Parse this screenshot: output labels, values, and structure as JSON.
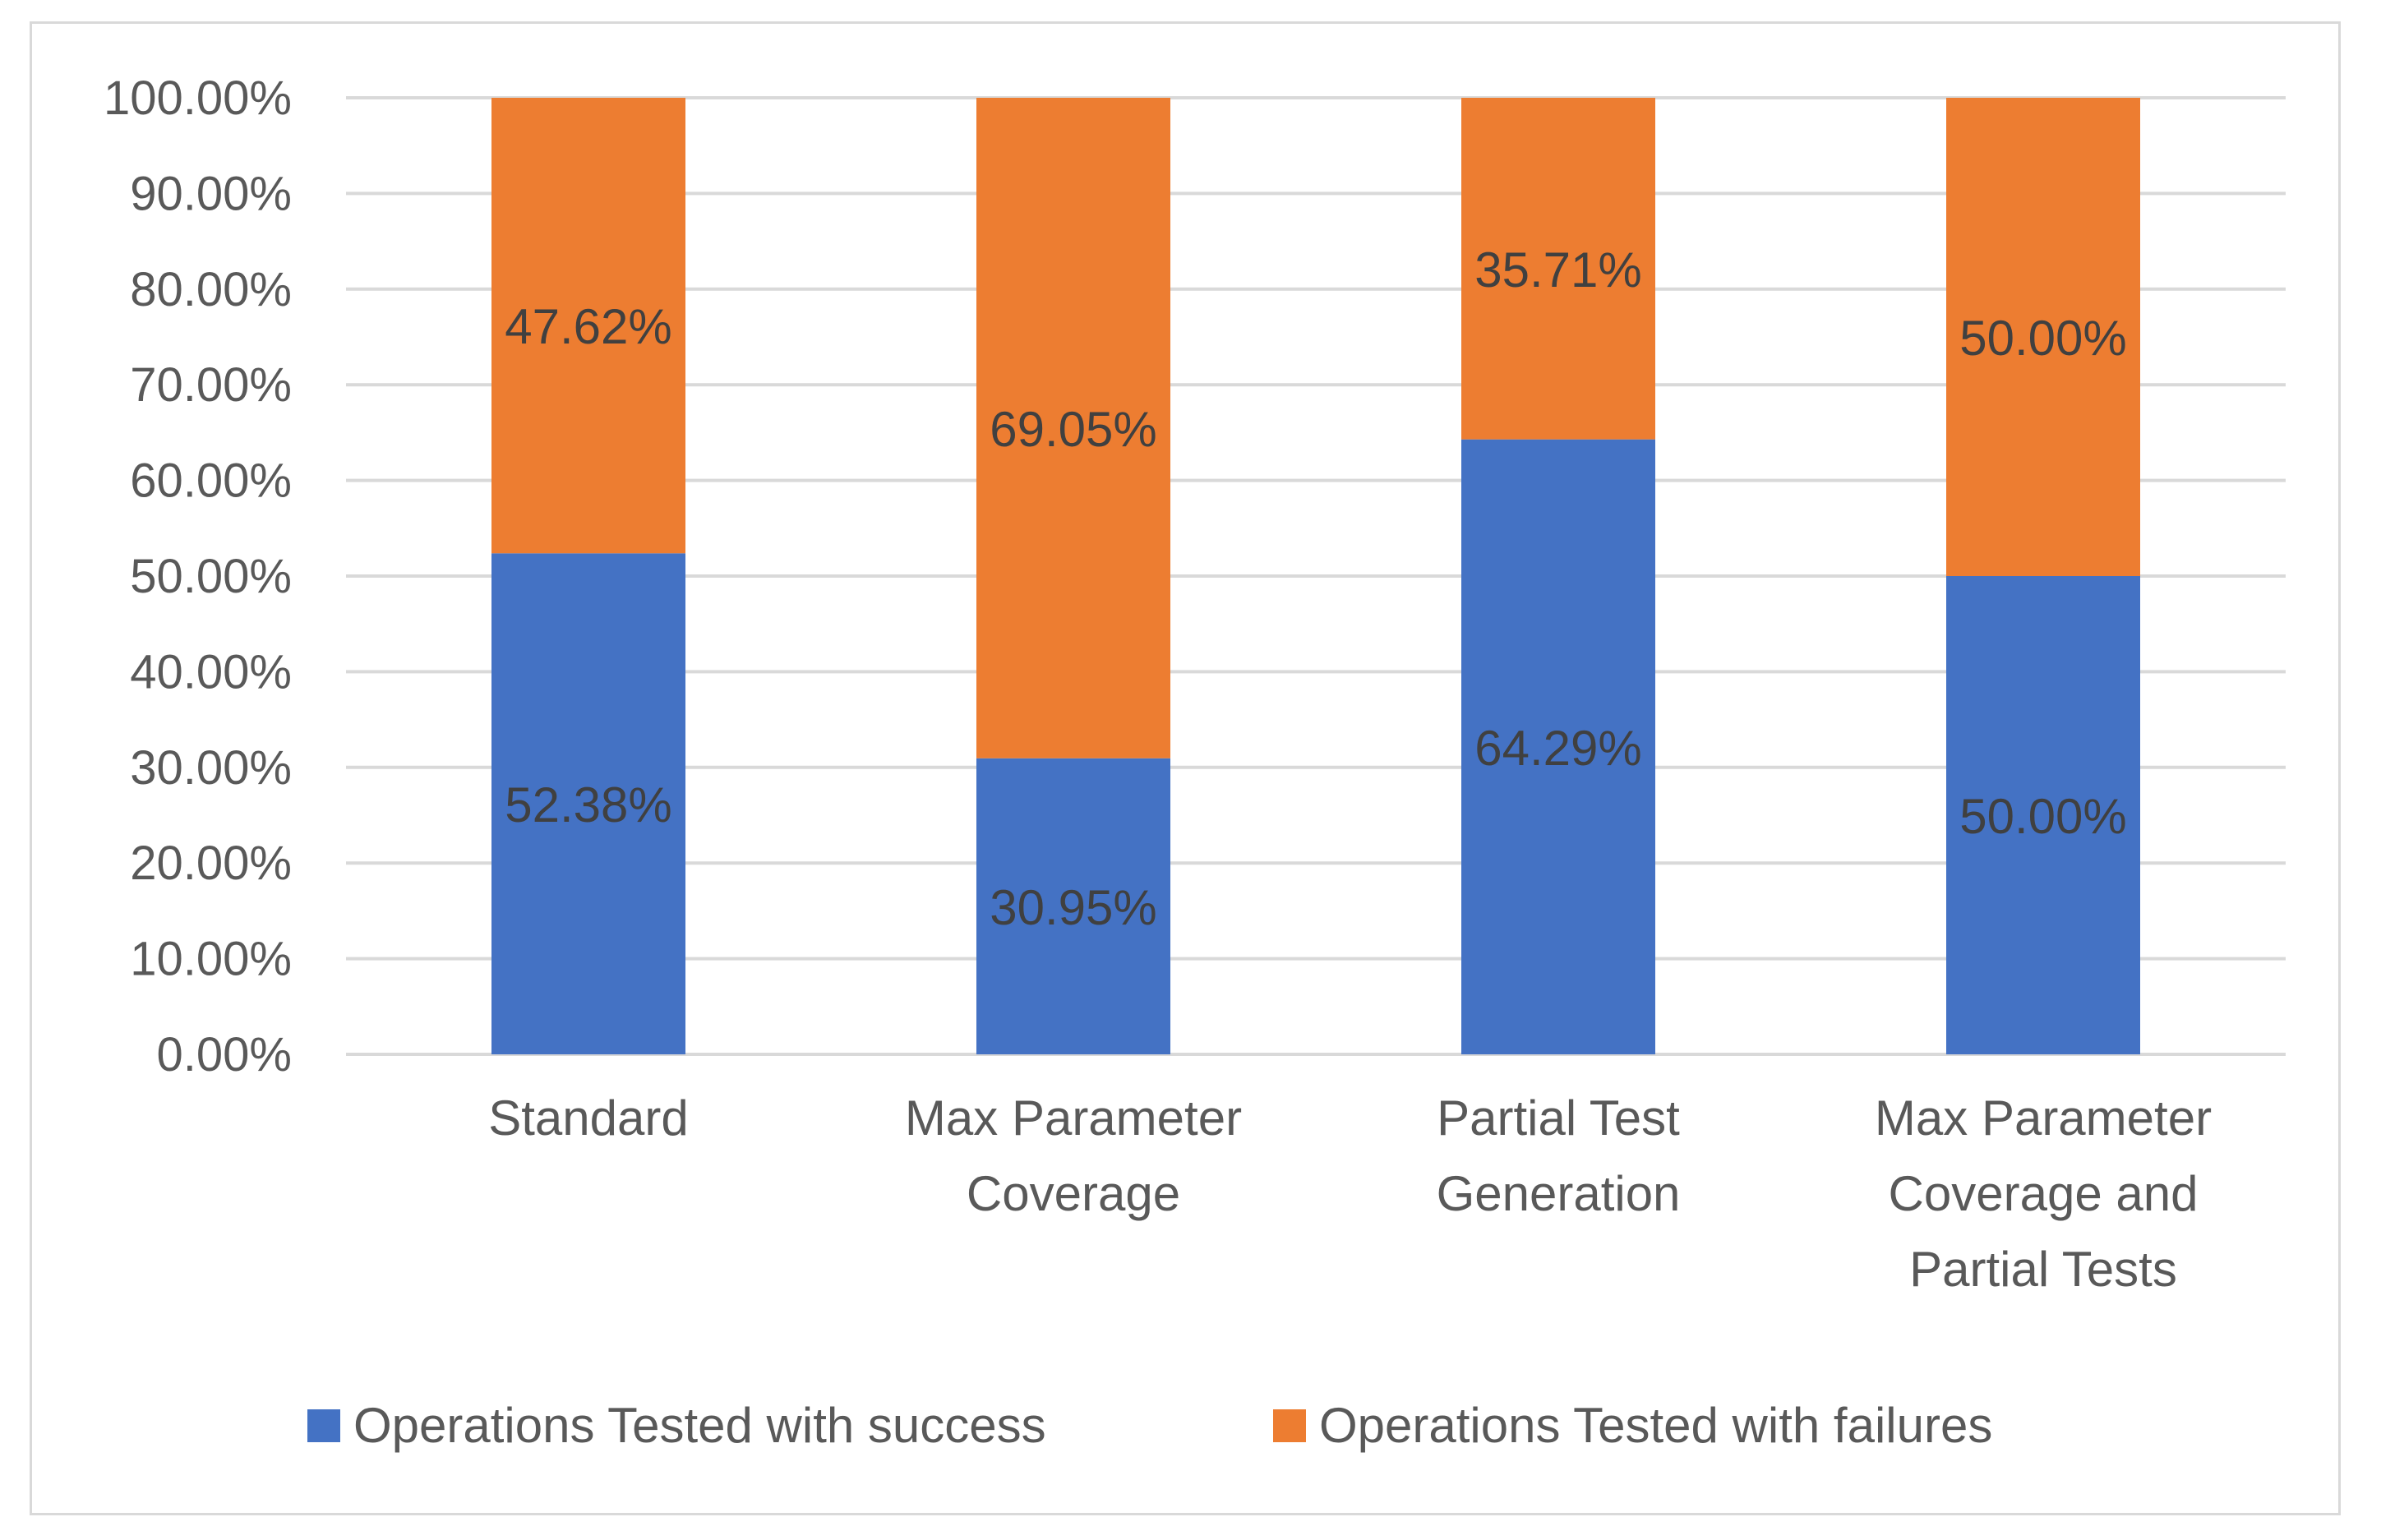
{
  "chart_data": {
    "type": "bar",
    "stacked": true,
    "title": "",
    "xlabel": "",
    "ylabel": "",
    "ylim": [
      0,
      100
    ],
    "ytick_step": 10,
    "ytick_format": "percent_2dp",
    "ytick_labels": [
      "0.00%",
      "10.00%",
      "20.00%",
      "30.00%",
      "40.00%",
      "50.00%",
      "60.00%",
      "70.00%",
      "80.00%",
      "90.00%",
      "100.00%"
    ],
    "categories": [
      [
        "Standard"
      ],
      [
        "Max Parameter",
        "Coverage"
      ],
      [
        "Partial Test",
        "Generation"
      ],
      [
        "Max Parameter",
        "Coverage and",
        "Partial Tests"
      ]
    ],
    "series": [
      {
        "name": "Operations Tested with success",
        "color": "#4472c4",
        "values": [
          52.38,
          30.95,
          64.29,
          50.0
        ],
        "labels": [
          "52.38%",
          "30.95%",
          "64.29%",
          "50.00%"
        ]
      },
      {
        "name": "Operations Tested with failures",
        "color": "#ed7d31",
        "values": [
          47.62,
          69.05,
          35.71,
          50.0
        ],
        "labels": [
          "47.62%",
          "69.05%",
          "35.71%",
          "50.00%"
        ]
      }
    ],
    "grid": true,
    "gridline_color": "#d9d9d9",
    "legend": "bottom"
  }
}
